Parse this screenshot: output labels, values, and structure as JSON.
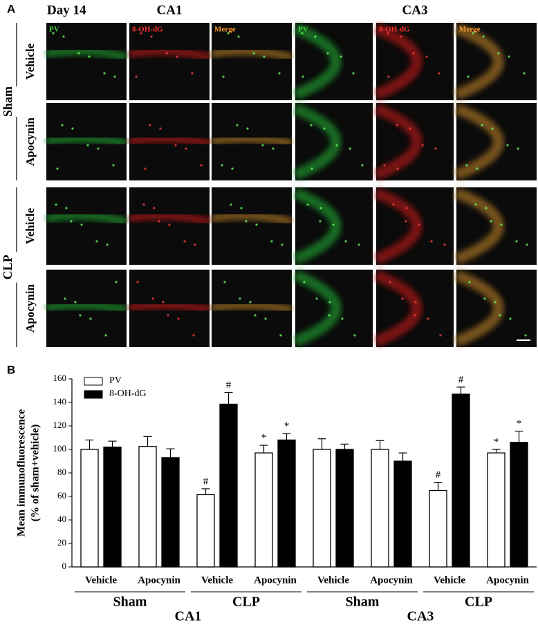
{
  "panel_a": {
    "label": "A",
    "day": "Day 14",
    "regions": [
      "CA1",
      "CA3"
    ],
    "channels": [
      "PV",
      "8-OH-dG",
      "Merge"
    ],
    "groups": [
      {
        "name": "Sham",
        "rows": [
          "Vehicle",
          "Apocynin"
        ]
      },
      {
        "name": "CLP",
        "rows": [
          "Vehicle",
          "Apocynin"
        ]
      }
    ]
  },
  "chart_data": {
    "type": "bar",
    "panel_label": "B",
    "y_label": [
      "Mean immunofluorescence",
      "(% of sham+vehicle)"
    ],
    "categories": [
      "Vehicle",
      "Apocynin",
      "Vehicle",
      "Apocynin",
      "Vehicle",
      "Apocynin",
      "Vehicle",
      "Apocynin"
    ],
    "groups": [
      "Sham",
      "CLP",
      "Sham",
      "CLP"
    ],
    "regions": [
      "CA1",
      "CA3"
    ],
    "series": [
      {
        "name": "PV",
        "color": "#ffffff",
        "values": [
          100,
          102.5,
          61.5,
          97,
          100,
          100,
          65,
          97
        ],
        "errors": [
          8,
          8.5,
          5,
          6.5,
          9,
          7.5,
          7,
          3
        ],
        "markers": [
          null,
          null,
          "#",
          "*",
          null,
          null,
          "#",
          "*"
        ]
      },
      {
        "name": "8-OH-dG",
        "color": "#000000",
        "values": [
          102,
          93,
          138.5,
          108,
          100,
          90,
          147,
          106
        ],
        "errors": [
          5,
          7.5,
          10,
          5.5,
          4.5,
          7,
          6,
          9.5
        ],
        "markers": [
          null,
          null,
          "#",
          "*",
          null,
          null,
          "#",
          "*"
        ]
      }
    ],
    "ylim": [
      0,
      160
    ],
    "yticks": [
      0,
      20,
      40,
      60,
      80,
      100,
      120,
      140,
      160
    ],
    "legend": "top-left"
  }
}
